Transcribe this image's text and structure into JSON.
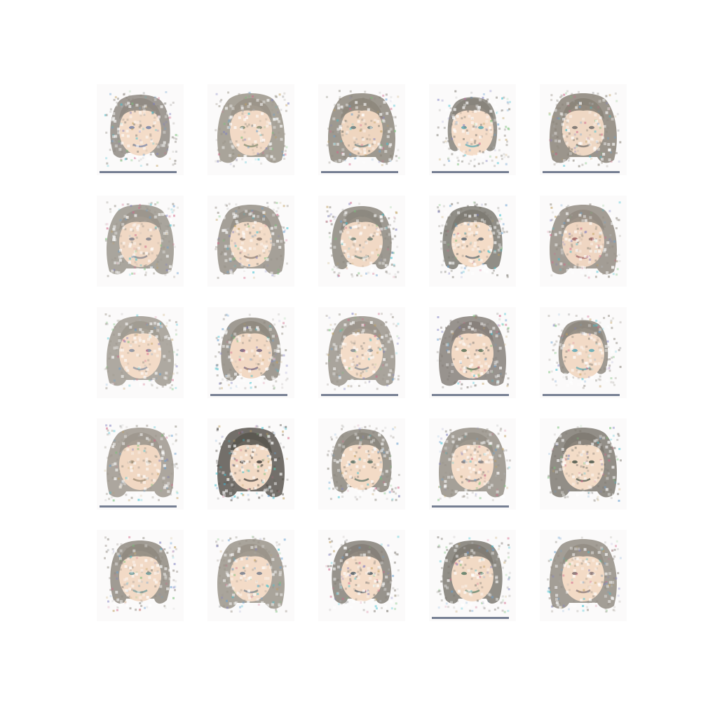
{
  "grid": {
    "rows": 5,
    "cols": 5,
    "tiles": [
      {
        "hair": "#8f8a82",
        "skin": "#f4dcc8",
        "accent": "#5a6fa0",
        "style": "bob",
        "bar": true
      },
      {
        "hair": "#9a9488",
        "skin": "#f2dac6",
        "accent": "#6b7a5a",
        "style": "long",
        "bar": false
      },
      {
        "hair": "#8d877c",
        "skin": "#efd6c0",
        "accent": "#4a6a70",
        "style": "long",
        "bar": true
      },
      {
        "hair": "#86827a",
        "skin": "#f5ddc9",
        "accent": "#3aa0b0",
        "style": "short",
        "bar": true
      },
      {
        "hair": "#8a8378",
        "skin": "#efd8c4",
        "accent": "#5a5a5a",
        "style": "long",
        "bar": true
      },
      {
        "hair": "#9a958c",
        "skin": "#f0d8c4",
        "accent": "#6a7080",
        "style": "long",
        "bar": false
      },
      {
        "hair": "#958f86",
        "skin": "#f3dcc8",
        "accent": "#7a6a60",
        "style": "long",
        "bar": false
      },
      {
        "hair": "#8c877e",
        "skin": "#f1d9c5",
        "accent": "#4d6a60",
        "style": "bob",
        "bar": false
      },
      {
        "hair": "#7d7a72",
        "skin": "#f4dcc7",
        "accent": "#405060",
        "style": "bob",
        "bar": false
      },
      {
        "hair": "#938c82",
        "skin": "#efd6c2",
        "accent": "#8a4a50",
        "style": "long",
        "bar": false
      },
      {
        "hair": "#a09a90",
        "skin": "#f3dbc7",
        "accent": "#70809a",
        "style": "long",
        "bar": false
      },
      {
        "hair": "#8f8a80",
        "skin": "#f2d9c4",
        "accent": "#5a4a70",
        "style": "bob",
        "bar": true
      },
      {
        "hair": "#9a948b",
        "skin": "#f4ddc9",
        "accent": "#6a7a8a",
        "style": "long",
        "bar": true
      },
      {
        "hair": "#86807a",
        "skin": "#f3dac5",
        "accent": "#3a5a40",
        "style": "long",
        "bar": true
      },
      {
        "hair": "#8e887f",
        "skin": "#f2dac6",
        "accent": "#40a0b0",
        "style": "short",
        "bar": true
      },
      {
        "hair": "#9d978d",
        "skin": "#f1d8c3",
        "accent": "#8a7a60",
        "style": "long",
        "bar": true
      },
      {
        "hair": "#5a5650",
        "skin": "#f2dac5",
        "accent": "#202020",
        "style": "long",
        "bar": false
      },
      {
        "hair": "#8b867d",
        "skin": "#f3dbc6",
        "accent": "#3a5a50",
        "style": "bob",
        "bar": false
      },
      {
        "hair": "#958f86",
        "skin": "#f4dcc8",
        "accent": "#6a6a70",
        "style": "long",
        "bar": true
      },
      {
        "hair": "#7f7a72",
        "skin": "#f3dcc7",
        "accent": "#2a3a30",
        "style": "long",
        "bar": false
      },
      {
        "hair": "#8f8980",
        "skin": "#f2dac6",
        "accent": "#4a8a90",
        "style": "bob",
        "bar": false
      },
      {
        "hair": "#9a948a",
        "skin": "#f3dbc7",
        "accent": "#5a6a80",
        "style": "long",
        "bar": false
      },
      {
        "hair": "#858078",
        "skin": "#f4dcc8",
        "accent": "#2a4050",
        "style": "bob",
        "bar": false
      },
      {
        "hair": "#7e7a72",
        "skin": "#f2dac5",
        "accent": "#3a6a50",
        "style": "bob",
        "bar": true
      },
      {
        "hair": "#938d84",
        "skin": "#f3dbc6",
        "accent": "#6a5a60",
        "style": "long",
        "bar": false
      }
    ]
  }
}
